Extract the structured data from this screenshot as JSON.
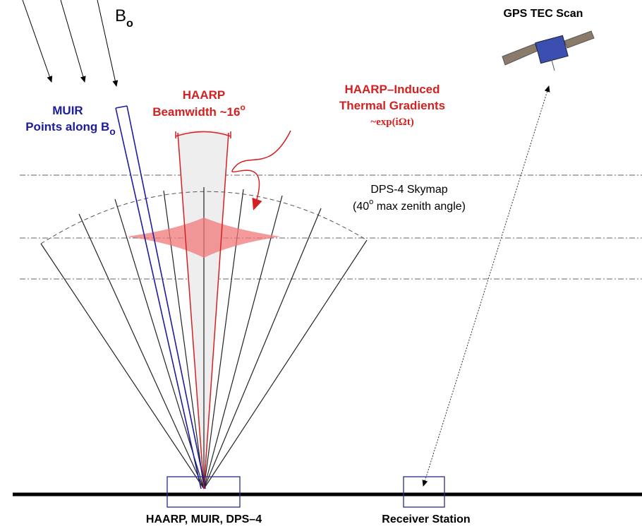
{
  "b_field": {
    "label": "B",
    "subscript": "o"
  },
  "muir": {
    "lines": [
      "MUIR",
      "Points along B"
    ],
    "subscript": "o"
  },
  "haarp": {
    "lines": [
      "HAARP",
      "Beamwidth ~16"
    ],
    "superscript": "o"
  },
  "thermal": {
    "lines": [
      "HAARP–Induced",
      "Thermal Gradients",
      "~exp(iΩt)"
    ]
  },
  "skymap": {
    "lines": [
      "DPS-4 Skymap",
      "(40",
      " max zenith angle)"
    ],
    "superscript": "o"
  },
  "gps": {
    "label": "GPS TEC Scan"
  },
  "ground": {
    "site": "HAARP, MUIR, DPS–4",
    "receiver": "Receiver Station"
  }
}
